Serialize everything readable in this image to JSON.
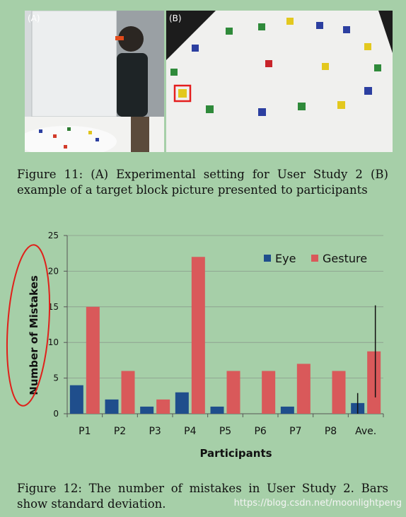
{
  "figure11": {
    "panel_a_label": "(A)",
    "panel_b_label": "(B)",
    "caption": "Figure 11: (A) Experimental setting for User Study 2 (B) example of a target block picture presented to participants"
  },
  "figure12": {
    "caption": "Figure 12: The number of mistakes in User Study 2. Bars show standard deviation."
  },
  "watermark": "https://blog.csdn.net/moonlightpeng",
  "colors": {
    "eye": "#1f4e8c",
    "gesture": "#d9595a",
    "annotation": "#e0201a",
    "background": "#a6cfa8"
  },
  "chart_data": {
    "type": "bar",
    "categories": [
      "P1",
      "P2",
      "P3",
      "P4",
      "P5",
      "P6",
      "P7",
      "P8",
      "Ave."
    ],
    "series": [
      {
        "name": "Eye",
        "values": [
          4,
          2,
          1,
          3,
          1,
          0,
          1,
          0,
          1.5
        ],
        "color": "#1f4e8c"
      },
      {
        "name": "Gesture",
        "values": [
          15,
          6,
          2,
          22,
          6,
          6,
          7,
          6,
          8.75
        ],
        "color": "#d9595a"
      }
    ],
    "error_bars": {
      "category": "Ave.",
      "Eye": [
        0,
        2.9
      ],
      "Gesture": [
        2.3,
        15.2
      ]
    },
    "xlabel": "Participants",
    "ylabel": "Number of Mistakes",
    "ylim": [
      0,
      25
    ],
    "yticks": [
      0,
      5,
      10,
      15,
      20,
      25
    ],
    "grid": true,
    "legend": "top-right"
  }
}
